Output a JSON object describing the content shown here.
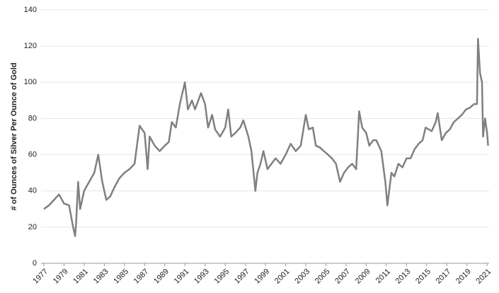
{
  "chart_data": {
    "type": "line",
    "ylabel": "# of Ounces of Silver Per Ounce of Gold",
    "xlim": [
      1977,
      2021.2
    ],
    "ylim": [
      0,
      140
    ],
    "xticks": [
      1977,
      1979,
      1981,
      1983,
      1985,
      1987,
      1989,
      1991,
      1993,
      1995,
      1997,
      1999,
      2001,
      2003,
      2005,
      2007,
      2009,
      2011,
      2013,
      2015,
      2017,
      2019,
      2021
    ],
    "yticks": [
      0,
      20,
      40,
      60,
      80,
      100,
      120,
      140
    ],
    "grid": true,
    "series": [
      {
        "color": "#808080",
        "x": [
          1977,
          1977.5,
          1978,
          1978.5,
          1979,
          1979.5,
          1979.9,
          1980.1,
          1980.2,
          1980.4,
          1980.6,
          1981,
          1981.5,
          1982,
          1982.4,
          1982.8,
          1983.2,
          1983.6,
          1984,
          1984.5,
          1985,
          1985.5,
          1986,
          1986.5,
          1987,
          1987.3,
          1987.5,
          1988,
          1988.5,
          1989,
          1989.4,
          1989.7,
          1990.1,
          1990.5,
          1991,
          1991.3,
          1991.7,
          1992,
          1992.6,
          1993,
          1993.3,
          1993.7,
          1994,
          1994.5,
          1995,
          1995.3,
          1995.6,
          1996,
          1996.5,
          1996.8,
          1997.3,
          1997.6,
          1998,
          1998.2,
          1998.5,
          1998.8,
          1999.2,
          1999.6,
          2000,
          2000.5,
          2001,
          2001.5,
          2002,
          2002.5,
          2003,
          2003.3,
          2003.7,
          2004,
          2004.4,
          2004.8,
          2005.2,
          2005.6,
          2006,
          2006.4,
          2006.8,
          2007.2,
          2007.6,
          2008,
          2008.3,
          2008.6,
          2009,
          2009.3,
          2009.7,
          2010,
          2010.5,
          2010.9,
          2011.1,
          2011.5,
          2011.8,
          2012.2,
          2012.6,
          2013,
          2013.4,
          2013.8,
          2014.2,
          2014.6,
          2014.9,
          2015.5,
          2015.9,
          2016.1,
          2016.5,
          2016.9,
          2017.3,
          2017.7,
          2018.1,
          2018.5,
          2018.9,
          2019.3,
          2019.7,
          2020,
          2020.1,
          2020.3,
          2020.5,
          2020.6,
          2020.8,
          2021,
          2021.1
        ],
        "values": [
          30,
          32,
          35,
          38,
          33,
          32,
          20,
          15,
          22,
          45,
          30,
          40,
          45,
          50,
          60,
          45,
          35,
          37,
          42,
          47,
          50,
          52,
          55,
          76,
          72,
          52,
          70,
          65,
          62,
          65,
          67,
          78,
          75,
          88,
          100,
          85,
          90,
          85,
          94,
          88,
          75,
          82,
          74,
          70,
          75,
          85,
          70,
          72,
          75,
          79,
          70,
          62,
          40,
          50,
          55,
          62,
          52,
          55,
          58,
          55,
          60,
          66,
          62,
          65,
          82,
          74,
          75,
          65,
          64,
          62,
          60,
          58,
          55,
          45,
          50,
          53,
          55,
          52,
          84,
          75,
          72,
          65,
          68,
          68,
          62,
          45,
          32,
          50,
          48,
          55,
          53,
          58,
          58,
          63,
          66,
          68,
          75,
          73,
          78,
          83,
          68,
          72,
          74,
          78,
          80,
          82,
          85,
          86,
          88,
          88,
          124,
          105,
          100,
          70,
          80,
          72,
          65
        ]
      }
    ]
  }
}
